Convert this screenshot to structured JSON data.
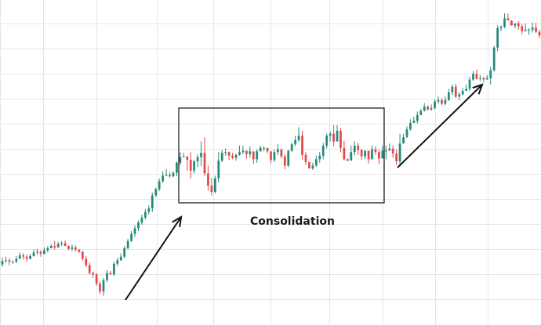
{
  "chart_data": {
    "type": "candlestick",
    "title": "",
    "xlabel": "",
    "ylabel": "",
    "ylim": [
      0,
      415
    ],
    "grid": true,
    "colors": {
      "up": "#26897a",
      "down": "#e34a4a",
      "grid": "#e6e6e6",
      "annotation": "#111111"
    },
    "candles": [
      [
        52,
        57,
        62,
        49
      ],
      [
        57,
        58,
        63,
        54
      ],
      [
        58,
        56,
        61,
        51
      ],
      [
        56,
        56,
        58,
        53
      ],
      [
        56,
        60,
        64,
        54
      ],
      [
        60,
        65,
        69,
        61
      ],
      [
        65,
        63,
        68,
        59
      ],
      [
        63,
        60,
        66,
        56
      ],
      [
        60,
        64,
        67,
        59
      ],
      [
        64,
        69,
        73,
        63
      ],
      [
        69,
        70,
        74,
        66
      ],
      [
        70,
        67,
        72,
        63
      ],
      [
        67,
        72,
        76,
        66
      ],
      [
        72,
        75,
        78,
        69
      ],
      [
        75,
        78,
        81,
        75
      ],
      [
        78,
        76,
        85,
        73
      ],
      [
        76,
        81,
        84,
        80
      ],
      [
        81,
        82,
        85,
        78
      ],
      [
        82,
        78,
        86,
        78
      ],
      [
        78,
        74,
        79,
        72
      ],
      [
        74,
        76,
        80,
        71
      ],
      [
        76,
        73,
        79,
        70
      ],
      [
        73,
        70,
        74,
        68
      ],
      [
        70,
        60,
        71,
        57
      ],
      [
        60,
        51,
        64,
        48
      ],
      [
        51,
        40,
        55,
        38
      ],
      [
        40,
        38,
        42,
        33
      ],
      [
        38,
        25,
        40,
        22
      ],
      [
        25,
        14,
        28,
        10
      ],
      [
        14,
        30,
        33,
        8
      ],
      [
        30,
        40,
        44,
        27
      ],
      [
        40,
        38,
        43,
        38
      ],
      [
        38,
        53,
        56,
        36
      ],
      [
        53,
        58,
        62,
        50
      ],
      [
        58,
        63,
        68,
        57
      ],
      [
        63,
        75,
        78,
        61
      ],
      [
        75,
        85,
        88,
        73
      ],
      [
        85,
        95,
        99,
        84
      ],
      [
        95,
        103,
        107,
        91
      ],
      [
        103,
        111,
        114,
        99
      ],
      [
        111,
        118,
        122,
        108
      ],
      [
        118,
        126,
        130,
        115
      ],
      [
        126,
        131,
        135,
        122
      ],
      [
        131,
        149,
        153,
        126
      ],
      [
        149,
        158,
        160,
        147
      ],
      [
        158,
        169,
        173,
        155
      ],
      [
        169,
        177,
        183,
        167
      ],
      [
        177,
        178,
        186,
        176
      ],
      [
        178,
        176,
        182,
        174
      ],
      [
        176,
        181,
        183,
        175
      ],
      [
        181,
        195,
        197,
        176
      ],
      [
        195,
        203,
        210,
        192
      ],
      [
        203,
        204,
        209,
        203
      ],
      [
        204,
        199,
        200,
        184
      ],
      [
        199,
        184,
        210,
        173
      ],
      [
        184,
        197,
        199,
        180
      ],
      [
        197,
        203,
        207,
        189
      ],
      [
        203,
        209,
        225,
        190
      ],
      [
        209,
        180,
        231,
        176
      ],
      [
        180,
        163,
        191,
        156
      ],
      [
        163,
        154,
        174,
        149
      ],
      [
        154,
        173,
        177,
        152
      ],
      [
        173,
        198,
        210,
        167
      ],
      [
        198,
        209,
        213,
        196
      ],
      [
        209,
        210,
        215,
        205
      ],
      [
        210,
        205,
        211,
        199
      ],
      [
        205,
        202,
        209,
        200
      ],
      [
        202,
        206,
        208,
        198
      ],
      [
        206,
        210,
        219,
        205
      ],
      [
        210,
        212,
        219,
        207
      ],
      [
        212,
        207,
        211,
        201
      ],
      [
        207,
        211,
        218,
        202
      ],
      [
        211,
        200,
        205,
        193
      ],
      [
        200,
        211,
        214,
        195
      ],
      [
        211,
        216,
        219,
        211
      ],
      [
        216,
        216,
        218,
        211
      ],
      [
        216,
        211,
        216,
        208
      ],
      [
        211,
        199,
        202,
        194
      ],
      [
        199,
        210,
        214,
        196
      ],
      [
        210,
        214,
        221,
        206
      ],
      [
        214,
        204,
        213,
        201
      ],
      [
        204,
        191,
        207,
        186
      ],
      [
        191,
        212,
        213,
        189
      ],
      [
        212,
        221,
        223,
        210
      ],
      [
        221,
        227,
        233,
        218
      ],
      [
        227,
        233,
        245,
        224
      ],
      [
        233,
        206,
        240,
        199
      ],
      [
        206,
        196,
        210,
        192
      ],
      [
        196,
        187,
        195,
        187
      ],
      [
        187,
        191,
        195,
        185
      ],
      [
        191,
        200,
        205,
        189
      ],
      [
        200,
        205,
        210,
        195
      ],
      [
        205,
        219,
        223,
        200
      ],
      [
        219,
        233,
        236,
        215
      ],
      [
        233,
        236,
        239,
        225
      ],
      [
        236,
        225,
        248,
        218
      ],
      [
        225,
        240,
        248,
        234
      ],
      [
        240,
        216,
        244,
        210
      ],
      [
        216,
        200,
        226,
        198
      ],
      [
        200,
        198,
        201,
        197
      ],
      [
        198,
        210,
        219,
        208
      ],
      [
        210,
        219,
        225,
        205
      ],
      [
        219,
        213,
        223,
        206
      ],
      [
        213,
        204,
        214,
        199
      ],
      [
        204,
        212,
        212,
        200
      ],
      [
        212,
        200,
        210,
        194
      ],
      [
        200,
        214,
        219,
        201
      ],
      [
        214,
        210,
        218,
        206
      ],
      [
        210,
        201,
        214,
        193
      ],
      [
        201,
        212,
        219,
        202
      ],
      [
        212,
        212,
        219,
        200
      ],
      [
        212,
        215,
        222,
        214
      ],
      [
        215,
        208,
        220,
        202
      ],
      [
        208,
        197,
        214,
        192
      ],
      [
        197,
        222,
        236,
        190
      ],
      [
        222,
        231,
        236,
        222
      ],
      [
        231,
        242,
        246,
        230
      ],
      [
        242,
        251,
        256,
        240
      ],
      [
        251,
        254,
        260,
        252
      ],
      [
        254,
        262,
        267,
        250
      ],
      [
        262,
        268,
        271,
        262
      ],
      [
        268,
        274,
        279,
        267
      ],
      [
        274,
        270,
        276,
        268
      ],
      [
        270,
        272,
        277,
        268
      ],
      [
        272,
        281,
        284,
        270
      ],
      [
        281,
        283,
        288,
        278
      ],
      [
        283,
        278,
        286,
        276
      ],
      [
        278,
        283,
        288,
        276
      ],
      [
        283,
        294,
        299,
        282
      ],
      [
        294,
        302,
        305,
        290
      ],
      [
        302,
        288,
        306,
        286
      ],
      [
        288,
        291,
        294,
        283
      ],
      [
        291,
        296,
        300,
        290
      ],
      [
        296,
        299,
        305,
        298
      ],
      [
        299,
        312,
        316,
        296
      ],
      [
        312,
        320,
        324,
        310
      ],
      [
        320,
        313,
        326,
        312
      ],
      [
        313,
        314,
        318,
        310
      ],
      [
        314,
        312,
        316,
        308
      ],
      [
        312,
        314,
        318,
        312
      ],
      [
        314,
        325,
        330,
        305
      ],
      [
        325,
        357,
        359,
        323
      ],
      [
        357,
        384,
        388,
        352
      ],
      [
        384,
        386,
        388,
        380
      ],
      [
        386,
        398,
        405,
        384
      ],
      [
        398,
        395,
        405,
        397
      ],
      [
        395,
        388,
        395,
        388
      ],
      [
        388,
        391,
        390,
        384
      ],
      [
        391,
        387,
        394,
        382
      ],
      [
        387,
        380,
        390,
        375
      ],
      [
        380,
        382,
        391,
        381
      ],
      [
        382,
        382,
        384,
        375
      ],
      [
        382,
        385,
        392,
        378
      ],
      [
        385,
        379,
        392,
        377
      ],
      [
        379,
        374,
        382,
        370
      ]
    ],
    "annotations": {
      "consolidation_label": "Consolidation"
    }
  }
}
